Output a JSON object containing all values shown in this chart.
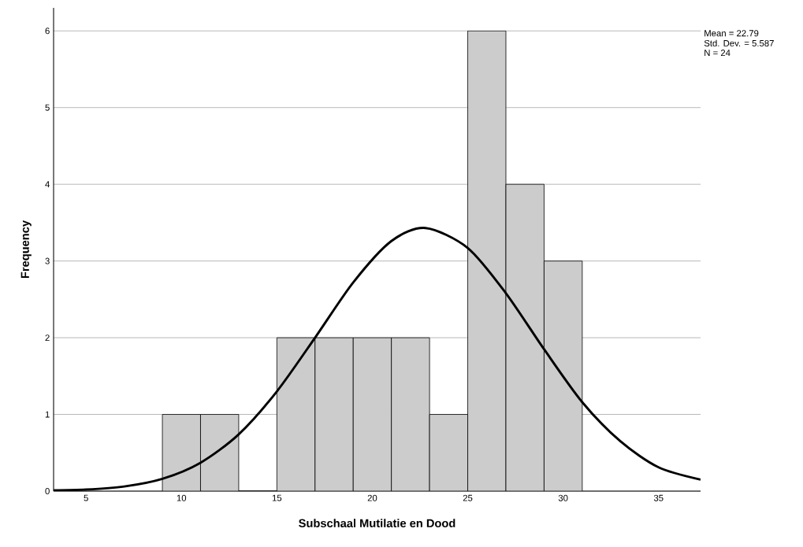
{
  "chart_data": {
    "type": "histogram",
    "xlabel": "Subschaal Mutilatie en Dood",
    "ylabel": "Frequency",
    "annotations": [
      "Mean = 22.79",
      "Std. Dev. = 5.587",
      "N = 24"
    ],
    "bins": [
      9,
      11,
      13,
      15,
      17,
      19,
      21,
      23,
      25,
      27,
      29,
      31
    ],
    "values": [
      1,
      1,
      0,
      2,
      2,
      2,
      2,
      1,
      6,
      4,
      3
    ],
    "color": "#cccccc",
    "series": [
      {
        "type": "line",
        "color": "#000000",
        "x": [
          3.3,
          5,
          7,
          9,
          11,
          13,
          15,
          17,
          19,
          21,
          22.79,
          25,
          27,
          29,
          31,
          33,
          35,
          37.2
        ],
        "values": [
          0.01,
          0.02,
          0.06,
          0.16,
          0.37,
          0.74,
          1.3,
          2.0,
          2.72,
          3.26,
          3.43,
          3.17,
          2.58,
          1.85,
          1.16,
          0.65,
          0.31,
          0.15
        ]
      }
    ],
    "xlim": [
      3.3,
      37.2
    ],
    "ylim": [
      0,
      6.3
    ],
    "xticks": [
      5,
      10,
      15,
      20,
      25,
      30,
      35
    ],
    "yticks": [
      0,
      1,
      2,
      3,
      4,
      5,
      6
    ],
    "grid": "y",
    "marker": "none",
    "line_style": "solid"
  }
}
